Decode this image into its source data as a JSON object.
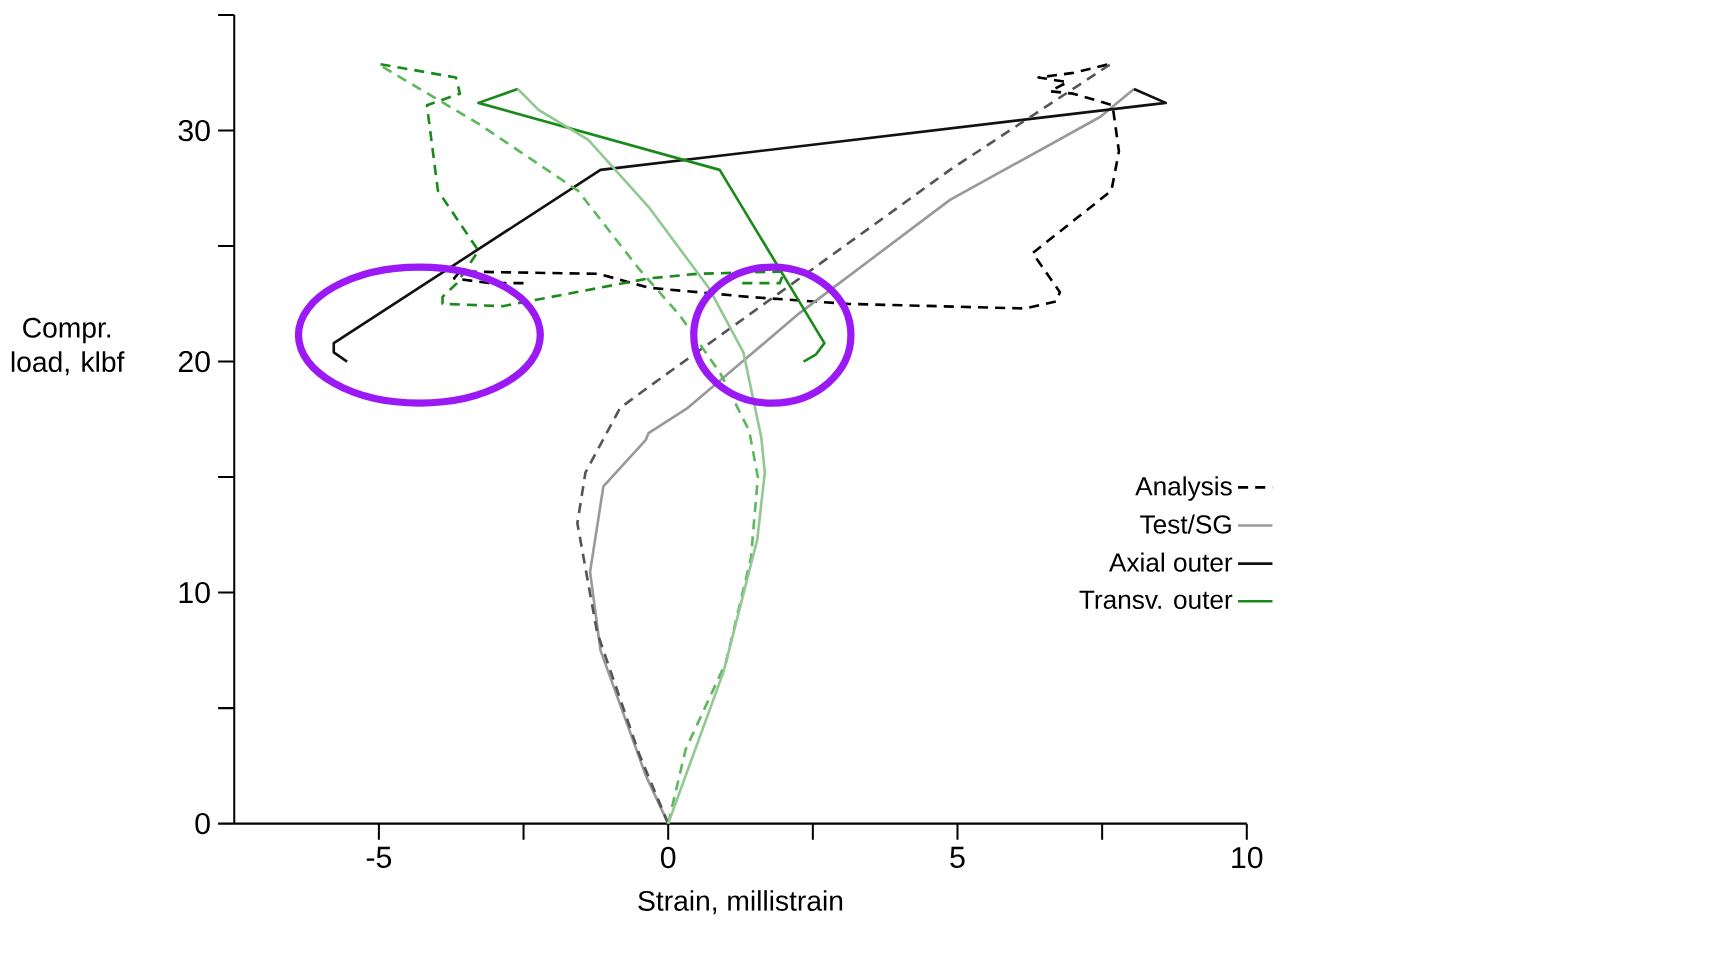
{
  "chart_data": {
    "type": "line",
    "xlabel": "Strain, millistrain",
    "ylabel": "Compr. load, klbf",
    "xlim": [
      -7.5,
      10
    ],
    "ylim": [
      0,
      35
    ],
    "xticks": [
      -5,
      {
        "value": -2.5,
        "label": null
      },
      0,
      {
        "value": 2.5,
        "label": null
      },
      5,
      {
        "value": 7.5,
        "label": null
      },
      10
    ],
    "yticks": [
      0,
      {
        "value": 5,
        "label": null
      },
      10,
      {
        "value": 15,
        "label": null
      },
      20,
      {
        "value": 25,
        "label": null
      },
      30,
      {
        "value": 35,
        "label": null
      }
    ],
    "legend": "right",
    "series": [
      {
        "name": "Analysis",
        "color": "#000000",
        "line_style": "dashed",
        "x": [
          -2.5,
          -3.1,
          -3.7,
          -3.6,
          -1.2,
          -0.34,
          1.4,
          3.1,
          6.17,
          6.7,
          6.77,
          6.3,
          7.66,
          7.79,
          7.68,
          7.0,
          6.6,
          6.9,
          6.4,
          7.0,
          7.66
        ],
        "values": [
          23.4,
          23.4,
          23.6,
          23.9,
          23.8,
          23.2,
          22.8,
          22.5,
          22.3,
          22.6,
          23.0,
          24.7,
          27.4,
          29.1,
          31.1,
          31.6,
          31.7,
          32.1,
          32.3,
          32.5,
          32.9
        ]
      },
      {
        "name": "Test/SG",
        "color": "#999999",
        "line_style": "solid",
        "x": [
          0,
          -0.39,
          -1.17,
          -1.35,
          -1.12,
          -0.39,
          -0.34,
          0.34,
          2.27,
          4.87,
          7.47,
          8.05
        ],
        "values": [
          0,
          2.1,
          7.5,
          10.9,
          14.6,
          16.6,
          16.9,
          18.0,
          22.1,
          27.0,
          30.6,
          31.8
        ]
      },
      {
        "name": "Axial outer",
        "color": "#111111",
        "line_style": "solid",
        "x": [
          -5.55,
          -5.78,
          -5.78,
          -1.17,
          8.6,
          8.05
        ],
        "values": [
          20.0,
          20.4,
          20.8,
          28.3,
          31.2,
          31.8
        ]
      },
      {
        "name": "Transv. outer",
        "color": "#1a8a1a",
        "line_style": "solid",
        "x": [
          2.34,
          2.55,
          2.7,
          0.89,
          -3.28,
          -2.6
        ],
        "values": [
          20.0,
          20.3,
          20.8,
          28.3,
          31.2,
          31.8
        ]
      },
      {
        "color": "#1a8a1a",
        "line_style": "dashed",
        "x": [
          1.28,
          1.93,
          2.0,
          0.5,
          -0.34,
          -2.86,
          -3.9,
          -3.9,
          -3.65,
          -3.28,
          -3.98,
          -4.17,
          -3.6,
          -3.67,
          -5.03
        ],
        "values": [
          23.4,
          23.4,
          23.9,
          23.8,
          23.6,
          22.4,
          22.5,
          22.8,
          23.4,
          24.8,
          27.4,
          31.1,
          31.6,
          32.3,
          32.9
        ]
      },
      {
        "color": "#555555",
        "line_style": "dashed",
        "x": [
          0,
          -0.5,
          -1.23,
          -1.57,
          -1.43,
          -0.83,
          -0.34,
          2.27,
          4.87,
          7.66
        ],
        "values": [
          0,
          3,
          8.3,
          13.0,
          15.2,
          18.0,
          18.9,
          23.6,
          28.3,
          32.9
        ]
      },
      {
        "color": "#5cb85c",
        "line_style": "dashed",
        "x": [
          0,
          0.3,
          1.0,
          1.43,
          1.55,
          1.4,
          0.9,
          0.2,
          -0.5,
          -1.56,
          -3.28,
          -5.03
        ],
        "values": [
          0,
          3.2,
          7,
          11.5,
          15,
          17,
          19.5,
          22,
          24,
          27.4,
          30.3,
          32.9
        ]
      },
      {
        "color": "#92c892",
        "line_style": "solid",
        "x": [
          0,
          0.96,
          1.54,
          1.67,
          1.61,
          1.3,
          0.7,
          -0.34,
          -1.38,
          -2.24,
          -2.6
        ],
        "values": [
          0,
          6.6,
          12.3,
          15.2,
          16.7,
          20.4,
          23.2,
          26.7,
          29.6,
          30.9,
          31.8
        ]
      }
    ]
  }
}
